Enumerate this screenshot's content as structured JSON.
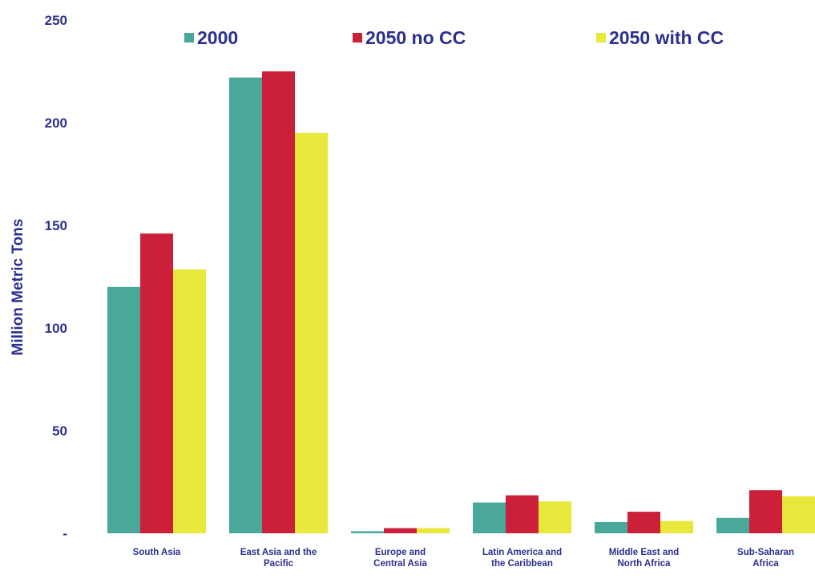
{
  "chart_data": {
    "type": "bar",
    "title": "",
    "xlabel": "",
    "ylabel": "Million Metric Tons",
    "ylim": [
      0,
      250
    ],
    "yticks": [
      "-",
      "50",
      "100",
      "150",
      "200",
      "250"
    ],
    "grid": false,
    "legend_position": "top",
    "categories": [
      [
        "South Asia"
      ],
      [
        "East Asia and the",
        "Pacific"
      ],
      [
        "Europe and",
        "Central Asia"
      ],
      [
        "Latin America and",
        "the Caribbean"
      ],
      [
        "Middle East and",
        "North Africa"
      ],
      [
        "Sub-Saharan",
        "Africa"
      ]
    ],
    "series": [
      {
        "name": "2000",
        "color": "#4aa89a",
        "values": [
          120,
          222,
          1,
          15,
          5.5,
          7.5
        ]
      },
      {
        "name": "2050 no CC",
        "color": "#cc1f3a",
        "values": [
          146,
          225,
          2.5,
          18.5,
          10.5,
          21
        ]
      },
      {
        "name": "2050 with CC",
        "color": "#e8e83c",
        "values": [
          128.5,
          195,
          2.5,
          15.5,
          6,
          18
        ]
      }
    ]
  }
}
